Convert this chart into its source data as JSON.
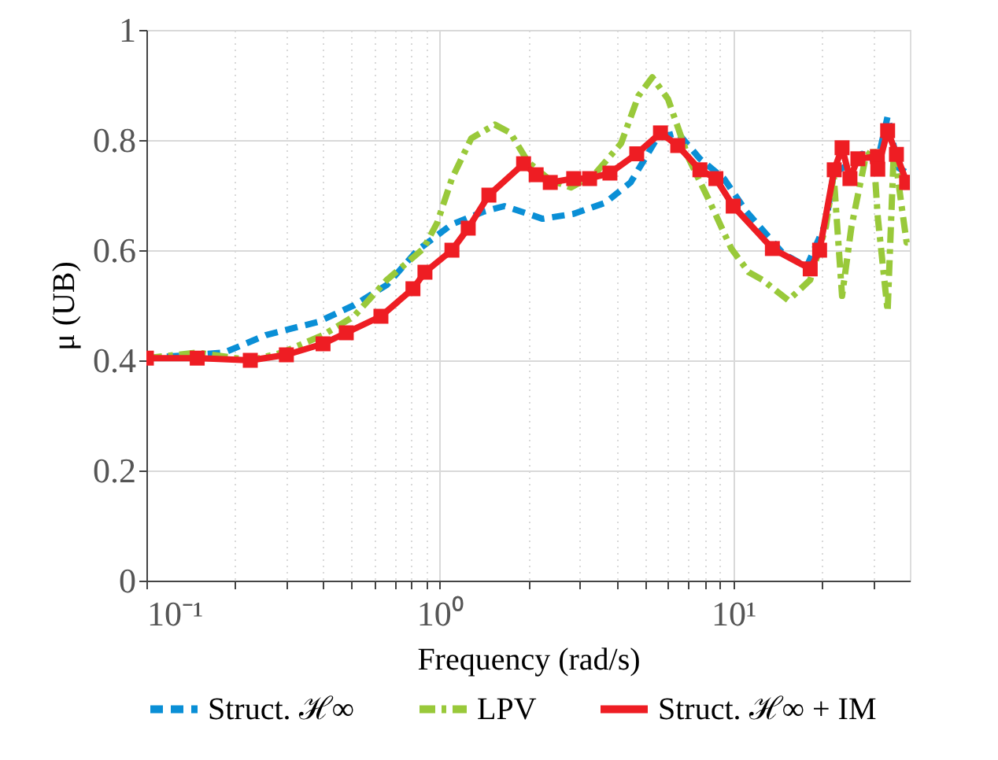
{
  "chart_data": {
    "type": "line",
    "xlabel": "Frequency (rad/s)",
    "ylabel": "μ (UB)",
    "log": "x",
    "xlim": [
      0.1,
      40
    ],
    "ylim": [
      0,
      1
    ],
    "xticks": [
      {
        "value": 0.1,
        "label": "10⁻¹"
      },
      {
        "value": 0.2,
        "label": null
      },
      {
        "value": 0.3,
        "label": null
      },
      {
        "value": 0.4,
        "label": null
      },
      {
        "value": 0.5,
        "label": null
      },
      {
        "value": 0.6,
        "label": null
      },
      {
        "value": 0.7,
        "label": null
      },
      {
        "value": 0.8,
        "label": null
      },
      {
        "value": 0.9,
        "label": null
      },
      {
        "value": 1,
        "label": "10⁰"
      },
      {
        "value": 2,
        "label": null
      },
      {
        "value": 3,
        "label": null
      },
      {
        "value": 4,
        "label": null
      },
      {
        "value": 5,
        "label": null
      },
      {
        "value": 6,
        "label": null
      },
      {
        "value": 7,
        "label": null
      },
      {
        "value": 8,
        "label": null
      },
      {
        "value": 9,
        "label": null
      },
      {
        "value": 10,
        "label": "10¹"
      },
      {
        "value": 20,
        "label": null
      },
      {
        "value": 30,
        "label": null
      }
    ],
    "yticks": [
      0,
      0.2,
      0.4,
      0.6,
      0.8,
      1
    ],
    "grid": true,
    "legend": "bottom",
    "series": [
      {
        "name": "Struct. ℋ∞",
        "color": "#0a8fd6",
        "line_style": "dashed",
        "marker": "none",
        "x": [
          0.1,
          0.184,
          0.256,
          0.386,
          0.51,
          0.66,
          0.84,
          1.1,
          1.41,
          1.66,
          2.0,
          2.24,
          2.86,
          3.66,
          4.47,
          5.5,
          6.47,
          7.7,
          9.3,
          11.1,
          14.8,
          17.8,
          20.7,
          22,
          25,
          27.5,
          31,
          33.6,
          36.5,
          40
        ],
        "values": [
          0.404,
          0.414,
          0.446,
          0.47,
          0.5,
          0.537,
          0.6,
          0.647,
          0.67,
          0.68,
          0.666,
          0.657,
          0.666,
          0.686,
          0.723,
          0.803,
          0.813,
          0.766,
          0.73,
          0.67,
          0.594,
          0.57,
          0.65,
          0.74,
          0.757,
          0.775,
          0.76,
          0.843,
          0.75,
          0.737
        ]
      },
      {
        "name": "LPV",
        "color": "#99c93a",
        "line_style": "dashdot",
        "marker": "none",
        "x": [
          0.1,
          0.149,
          0.226,
          0.29,
          0.4,
          0.51,
          0.66,
          0.88,
          0.98,
          1.1,
          1.28,
          1.54,
          1.74,
          2.0,
          2.38,
          2.8,
          3.36,
          4.15,
          4.75,
          5.3,
          6.0,
          7.06,
          8.3,
          9.85,
          11.3,
          12.6,
          15.4,
          18.3,
          20.7,
          22,
          23.5,
          25.3,
          28.2,
          30,
          31.1,
          33.6,
          35.3,
          37.5,
          39,
          40
        ],
        "values": [
          0.404,
          0.414,
          0.4,
          0.414,
          0.446,
          0.48,
          0.546,
          0.603,
          0.65,
          0.73,
          0.803,
          0.828,
          0.813,
          0.76,
          0.727,
          0.714,
          0.737,
          0.794,
          0.88,
          0.914,
          0.874,
          0.766,
          0.689,
          0.603,
          0.56,
          0.546,
          0.509,
          0.546,
          0.643,
          0.737,
          0.517,
          0.643,
          0.766,
          0.786,
          0.66,
          0.489,
          0.786,
          0.68,
          0.614,
          0.614
        ]
      },
      {
        "name": "Struct. ℋ∞ + IM",
        "color": "#ee1d23",
        "line_style": "solid",
        "marker": "square",
        "x": [
          0.1,
          0.149,
          0.226,
          0.3,
          0.4,
          0.48,
          0.63,
          0.81,
          0.89,
          1.1,
          1.25,
          1.47,
          1.93,
          2.13,
          2.38,
          2.86,
          3.24,
          3.8,
          4.69,
          5.65,
          6.47,
          7.7,
          8.73,
          10,
          13.6,
          18.3,
          19.7,
          22.1,
          23.5,
          25,
          26.6,
          31,
          31.1,
          33.6,
          36,
          39,
          40
        ],
        "values": [
          0.404,
          0.404,
          0.4,
          0.41,
          0.43,
          0.45,
          0.48,
          0.53,
          0.56,
          0.6,
          0.64,
          0.7,
          0.757,
          0.737,
          0.723,
          0.73,
          0.73,
          0.74,
          0.775,
          0.813,
          0.79,
          0.746,
          0.73,
          0.68,
          0.603,
          0.566,
          0.6,
          0.746,
          0.786,
          0.73,
          0.766,
          0.77,
          0.747,
          0.817,
          0.774,
          0.723,
          0.723
        ]
      }
    ]
  }
}
